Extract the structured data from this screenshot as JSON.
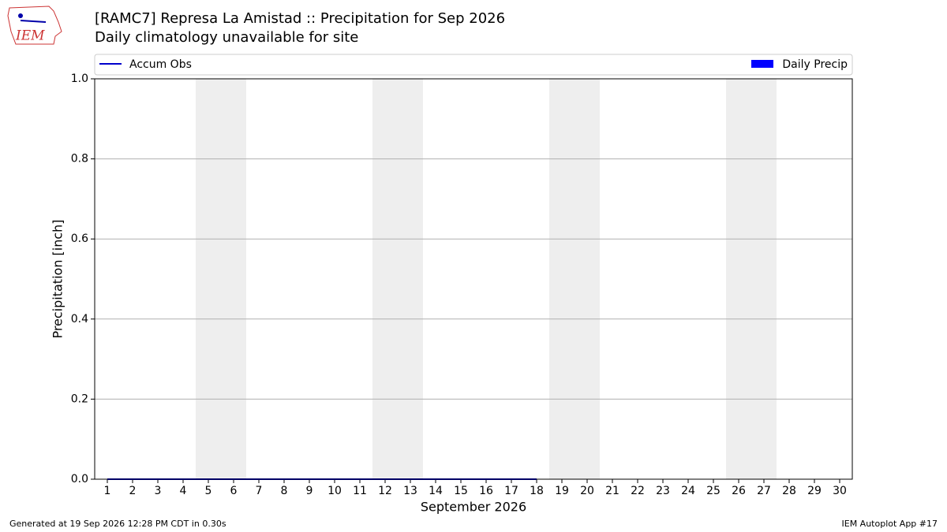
{
  "chart_data": {
    "type": "bar_line",
    "title": "[RAMC7] Represa La Amistad :: Precipitation for Sep 2026",
    "subtitle": "Daily climatology unavailable for site",
    "xlabel": "September 2026",
    "ylabel": "Precipitation [inch]",
    "logo": "IEM",
    "footer_left": "Generated at 19 Sep 2026 12:28 PM CDT in 0.30s",
    "footer_right": "IEM Autoplot App #17",
    "x": [
      1,
      2,
      3,
      4,
      5,
      6,
      7,
      8,
      9,
      10,
      11,
      12,
      13,
      14,
      15,
      16,
      17,
      18,
      19,
      20,
      21,
      22,
      23,
      24,
      25,
      26,
      27,
      28,
      29,
      30
    ],
    "xlim": [
      0.5,
      30.5
    ],
    "xticks": [
      1,
      2,
      3,
      4,
      5,
      6,
      7,
      8,
      9,
      10,
      11,
      12,
      13,
      14,
      15,
      16,
      17,
      18,
      19,
      20,
      21,
      22,
      23,
      24,
      25,
      26,
      27,
      28,
      29,
      30
    ],
    "ylim": [
      0,
      1
    ],
    "yticks": [
      {
        "value": 0,
        "label": "0.0"
      },
      0.2,
      0.4,
      0.6,
      0.8,
      {
        "value": 1,
        "label": "1.0"
      }
    ],
    "grid": true,
    "shaded_spans": [
      [
        4.5,
        6.5
      ],
      [
        11.5,
        13.5
      ],
      [
        18.5,
        20.5
      ],
      [
        25.5,
        27.5
      ]
    ],
    "shade_color": "#eeeeee",
    "series": [
      {
        "name": "Accum Obs",
        "kind": "line",
        "color": "#0000cc",
        "values": [
          0,
          0,
          0,
          0,
          0,
          0,
          0,
          0,
          0,
          0,
          0,
          0,
          0,
          0,
          0,
          0,
          0,
          0,
          null,
          null,
          null,
          null,
          null,
          null,
          null,
          null,
          null,
          null,
          null,
          null
        ]
      },
      {
        "name": "Daily Precip",
        "kind": "bar",
        "color": "#0000ff",
        "values": [
          0,
          0,
          0,
          0,
          0,
          0,
          0,
          0,
          0,
          0,
          0,
          0,
          0,
          0,
          0,
          0,
          0,
          0,
          null,
          null,
          null,
          null,
          null,
          null,
          null,
          null,
          null,
          null,
          null,
          null
        ]
      }
    ]
  }
}
